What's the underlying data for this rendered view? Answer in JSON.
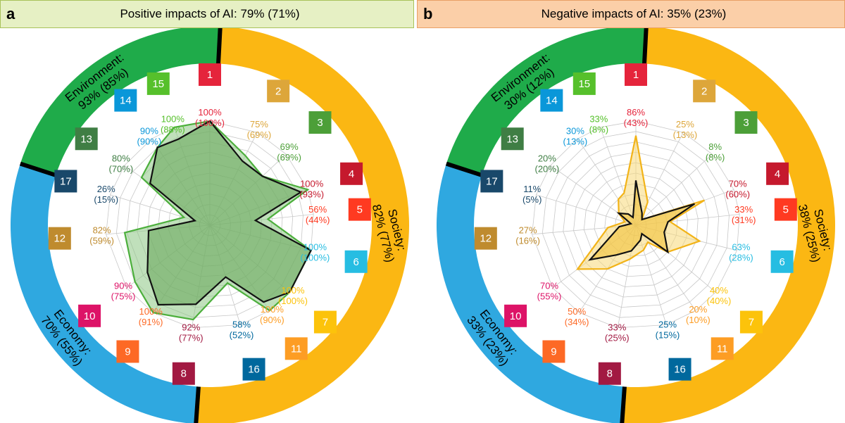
{
  "header_a": {
    "letter": "a",
    "title": "Positive impacts of AI:  79% (71%)"
  },
  "header_b": {
    "letter": "b",
    "title": "Negative impacts of AI:  35% (23%)"
  },
  "sdg_colors": {
    "1": "#e5243b",
    "2": "#dda63a",
    "3": "#4c9f38",
    "4": "#c5192d",
    "5": "#ff3a21",
    "6": "#26bde2",
    "7": "#fcc30b",
    "8": "#a21942",
    "9": "#fd6925",
    "10": "#dd1367",
    "11": "#fd9d24",
    "12": "#bf8b2e",
    "13": "#3f7e44",
    "14": "#0a97d9",
    "15": "#56c02b",
    "16": "#00689d",
    "17": "#19486a"
  },
  "rings": {
    "society_color": "#fbb713",
    "economy_color": "#2fa8e0",
    "environment_color": "#1fab4a"
  },
  "chart_data": [
    {
      "type": "radar",
      "title": "Positive impacts of AI:  79% (71%)",
      "axes": [
        "1",
        "2",
        "3",
        "4",
        "5",
        "6",
        "7",
        "11",
        "16",
        "8",
        "9",
        "10",
        "12",
        "17",
        "13",
        "14",
        "15"
      ],
      "value_labels": {
        "1": [
          "100%",
          "(100%)"
        ],
        "2": [
          "75%",
          "(69%)"
        ],
        "3": [
          "69%",
          "(69%)"
        ],
        "4": [
          "100%",
          "(93%)"
        ],
        "5": [
          "56%",
          "(44%)"
        ],
        "6": [
          "100%",
          "(100%)"
        ],
        "7": [
          "100%",
          "(100%)"
        ],
        "11": [
          "100%",
          "(90%)"
        ],
        "16": [
          "58%",
          "(52%)"
        ],
        "8": [
          "92%",
          "(77%)"
        ],
        "9": [
          "100%",
          "(91%)"
        ],
        "10": [
          "90%",
          "(75%)"
        ],
        "12": [
          "82%",
          "(59%)"
        ],
        "17": [
          "26%",
          "(15%)"
        ],
        "13": [
          "80%",
          "(70%)"
        ],
        "14": [
          "90%",
          "(90%)"
        ],
        "15": [
          "100%",
          "(88%)"
        ]
      },
      "series": [
        {
          "name": "outer",
          "values": [
            100,
            75,
            69,
            100,
            56,
            100,
            100,
            100,
            58,
            92,
            100,
            90,
            82,
            26,
            80,
            90,
            100
          ],
          "stroke": "#4caf3c",
          "fill": "#8cc784"
        },
        {
          "name": "inner",
          "values": [
            100,
            69,
            69,
            93,
            44,
            100,
            100,
            90,
            52,
            77,
            91,
            75,
            59,
            15,
            70,
            90,
            88
          ],
          "stroke": "#111111",
          "fill": "#6aa95e"
        }
      ],
      "rings": [
        {
          "label_top": "Society:",
          "label_bottom": "82% (77%)"
        },
        {
          "label_top": "Economy:",
          "label_bottom": "70% (55%)"
        },
        {
          "label_top": "Environment:",
          "label_bottom": "93% (85%)"
        }
      ]
    },
    {
      "type": "radar",
      "title": "Negative impacts of AI:  35% (23%)",
      "axes": [
        "1",
        "2",
        "3",
        "4",
        "5",
        "6",
        "7",
        "11",
        "16",
        "8",
        "9",
        "10",
        "12",
        "17",
        "13",
        "14",
        "15"
      ],
      "value_labels": {
        "1": [
          "86%",
          "(43%)"
        ],
        "2": [
          "25%",
          "(13%)"
        ],
        "3": [
          "8%",
          "(8%)"
        ],
        "4": [
          "70%",
          "(60%)"
        ],
        "5": [
          "33%",
          "(31%)"
        ],
        "6": [
          "63%",
          "(28%)"
        ],
        "7": [
          "40%",
          "(40%)"
        ],
        "11": [
          "20%",
          "(10%)"
        ],
        "16": [
          "25%",
          "(15%)"
        ],
        "8": [
          "33%",
          "(25%)"
        ],
        "9": [
          "50%",
          "(34%)"
        ],
        "10": [
          "70%",
          "(55%)"
        ],
        "12": [
          "27%",
          "(16%)"
        ],
        "17": [
          "11%",
          "(5%)"
        ],
        "13": [
          "20%",
          "(20%)"
        ],
        "14": [
          "30%",
          "(13%)"
        ],
        "15": [
          "33%",
          "(8%)"
        ]
      },
      "series": [
        {
          "name": "outer",
          "values": [
            86,
            25,
            8,
            70,
            33,
            63,
            40,
            20,
            25,
            33,
            50,
            70,
            27,
            11,
            20,
            30,
            33
          ],
          "stroke": "#f2b318",
          "fill": "#f8d978"
        },
        {
          "name": "inner",
          "values": [
            43,
            13,
            8,
            60,
            31,
            28,
            40,
            10,
            15,
            25,
            34,
            55,
            16,
            5,
            20,
            13,
            8
          ],
          "stroke": "#111111",
          "fill": "#f2c23a"
        }
      ],
      "rings": [
        {
          "label_top": "Society:",
          "label_bottom": "38% (25%)"
        },
        {
          "label_top": "Economy:",
          "label_bottom": "33% (23%)"
        },
        {
          "label_top": "Environment:",
          "label_bottom": "30% (12%)"
        }
      ]
    }
  ]
}
